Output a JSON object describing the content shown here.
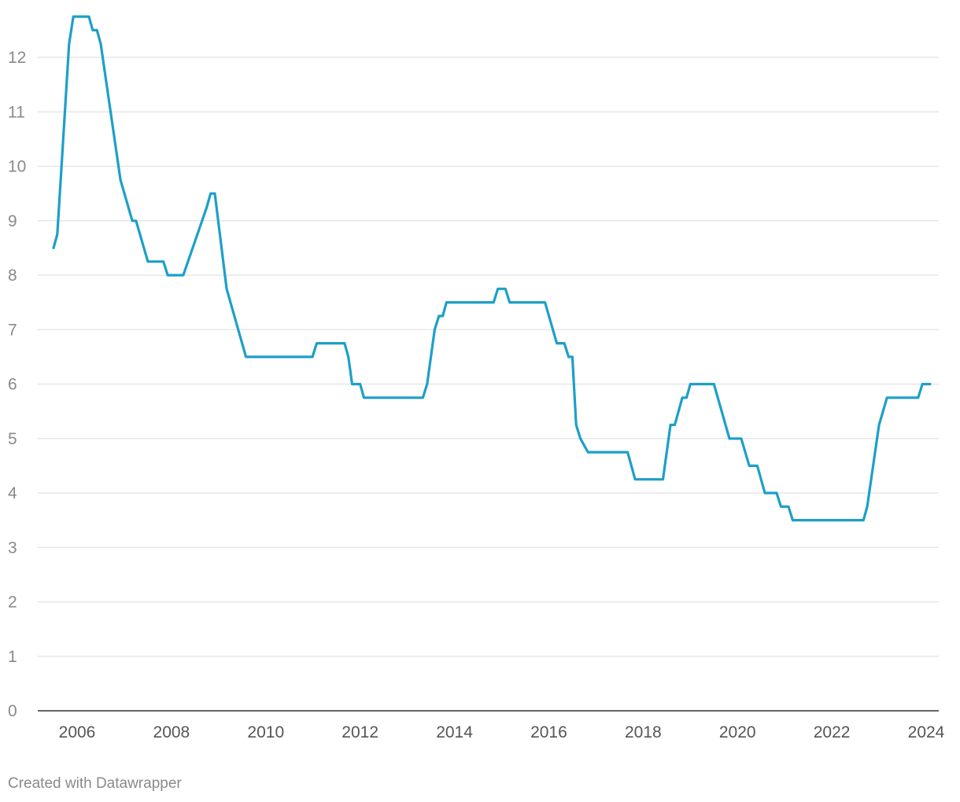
{
  "chart_data": {
    "type": "line",
    "title": "",
    "xlabel": "",
    "ylabel": "",
    "xlim": [
      2005.25,
      2024.0
    ],
    "ylim": [
      0,
      12.5
    ],
    "grid": true,
    "y_ticks": [
      "0",
      "1",
      "2",
      "3",
      "4",
      "5",
      "6",
      "7",
      "8",
      "9",
      "10",
      "11",
      "12"
    ],
    "x_ticks": [
      "2006",
      "2008",
      "2010",
      "2012",
      "2014",
      "2016",
      "2018",
      "2020",
      "2022",
      "2024"
    ],
    "series": [
      {
        "color": "#1d9fc9",
        "x": [
          2005.5,
          2005.58,
          2005.67,
          2005.83,
          2005.92,
          2006.25,
          2006.33,
          2006.42,
          2006.5,
          2006.92,
          2007.17,
          2007.25,
          2007.5,
          2007.83,
          2007.92,
          2008.25,
          2008.75,
          2008.83,
          2008.92,
          2009.17,
          2009.58,
          2010.99,
          2011.08,
          2011.67,
          2011.75,
          2011.83,
          2012.0,
          2012.08,
          2013.33,
          2013.42,
          2013.58,
          2013.67,
          2013.75,
          2013.83,
          2014.83,
          2014.92,
          2015.08,
          2015.17,
          2015.92,
          2016.17,
          2016.33,
          2016.42,
          2016.5,
          2016.58,
          2016.67,
          2016.83,
          2017.67,
          2017.83,
          2018.42,
          2018.58,
          2018.67,
          2018.83,
          2018.92,
          2019.0,
          2019.5,
          2019.83,
          2020.08,
          2020.25,
          2020.42,
          2020.58,
          2020.83,
          2020.92,
          2021.08,
          2021.17,
          2022.67,
          2022.75,
          2023.0,
          2023.17,
          2023.83,
          2023.92,
          2024.08
        ],
        "y": [
          8.5,
          8.75,
          10.0,
          12.25,
          12.75,
          12.75,
          12.5,
          12.5,
          12.25,
          9.75,
          9.0,
          9.0,
          8.25,
          8.25,
          8.0,
          8.0,
          9.25,
          9.5,
          9.5,
          7.75,
          6.5,
          6.5,
          6.75,
          6.75,
          6.5,
          6.0,
          6.0,
          5.75,
          5.75,
          6.0,
          7.0,
          7.25,
          7.25,
          7.5,
          7.5,
          7.75,
          7.75,
          7.5,
          7.5,
          6.75,
          6.75,
          6.5,
          6.5,
          5.25,
          5.0,
          4.75,
          4.75,
          4.25,
          4.25,
          5.25,
          5.25,
          5.75,
          5.75,
          6.0,
          6.0,
          5.0,
          5.0,
          4.5,
          4.5,
          4.0,
          4.0,
          3.75,
          3.75,
          3.5,
          3.5,
          3.75,
          5.25,
          5.75,
          5.75,
          6.0,
          6.0
        ]
      }
    ]
  },
  "footer": {
    "credit": "Created with Datawrapper"
  }
}
